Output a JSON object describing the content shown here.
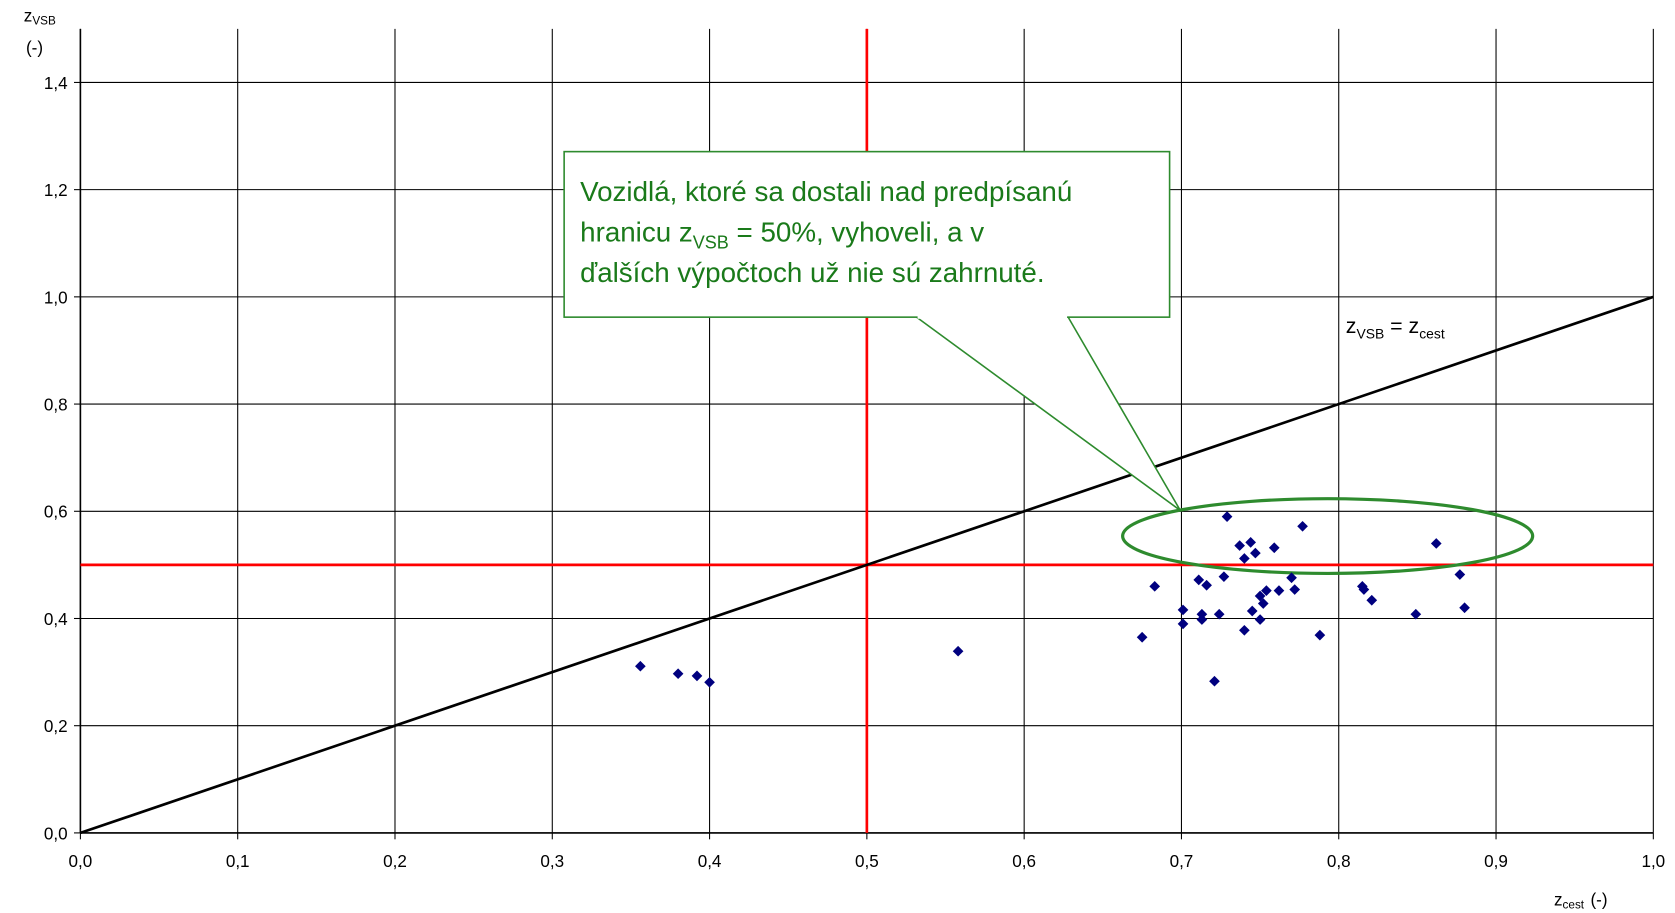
{
  "chart_data": {
    "type": "scatter",
    "y_label": {
      "main": "z",
      "sub": "VSB",
      "unit": "(-)"
    },
    "x_label": {
      "main": "z",
      "sub": "cest",
      "unit": "(-)"
    },
    "xlim": [
      0,
      1.0
    ],
    "ylim": [
      0,
      1.5
    ],
    "xticks": [
      {
        "value": 0,
        "label": "0,0"
      },
      {
        "value": 0.1,
        "label": "0,1"
      },
      {
        "value": 0.2,
        "label": "0,2"
      },
      {
        "value": 0.3,
        "label": "0,3"
      },
      {
        "value": 0.4,
        "label": "0,4"
      },
      {
        "value": 0.5,
        "label": "0,5"
      },
      {
        "value": 0.6,
        "label": "0,6"
      },
      {
        "value": 0.7,
        "label": "0,7"
      },
      {
        "value": 0.8,
        "label": "0,8"
      },
      {
        "value": 0.9,
        "label": "0,9"
      },
      {
        "value": 1.0,
        "label": "1,0"
      }
    ],
    "yticks": [
      {
        "value": 0,
        "label": "0,0"
      },
      {
        "value": 0.2,
        "label": "0,2"
      },
      {
        "value": 0.4,
        "label": "0,4"
      },
      {
        "value": 0.6,
        "label": "0,6"
      },
      {
        "value": 0.8,
        "label": "0,8"
      },
      {
        "value": 1.0,
        "label": "1,0"
      },
      {
        "value": 1.2,
        "label": "1,2"
      },
      {
        "value": 1.4,
        "label": "1,4"
      }
    ],
    "grid": true,
    "series": [
      {
        "color": "#00007f",
        "x": [
          0.356,
          0.38,
          0.392,
          0.4,
          0.558,
          0.675,
          0.683,
          0.701,
          0.701,
          0.711,
          0.713,
          0.713,
          0.716,
          0.724,
          0.721,
          0.727,
          0.729,
          0.737,
          0.74,
          0.74,
          0.744,
          0.747,
          0.745,
          0.75,
          0.75,
          0.752,
          0.754,
          0.759,
          0.762,
          0.77,
          0.772,
          0.777,
          0.788,
          0.815,
          0.816,
          0.821,
          0.849,
          0.862,
          0.877,
          0.88
        ],
        "values": [
          0.311,
          0.297,
          0.293,
          0.281,
          0.339,
          0.365,
          0.46,
          0.416,
          0.39,
          0.472,
          0.408,
          0.398,
          0.462,
          0.408,
          0.283,
          0.478,
          0.59,
          0.536,
          0.512,
          0.378,
          0.542,
          0.522,
          0.414,
          0.442,
          0.398,
          0.428,
          0.452,
          0.532,
          0.452,
          0.476,
          0.454,
          0.572,
          0.369,
          0.46,
          0.454,
          0.434,
          0.408,
          0.54,
          0.482,
          0.42
        ]
      }
    ],
    "reference_lines": {
      "x": 0.5,
      "y": 0.5,
      "color": "#ff0000"
    },
    "diagonal": {
      "x": [
        0,
        1.0
      ],
      "y": [
        0,
        1.0
      ],
      "color": "#000000",
      "label": [
        "z",
        "VSB",
        " = z",
        "cest"
      ]
    },
    "annotation": {
      "lines": [
        "Vozidlá, ktoré sa dostali nad predpísanú",
        [
          "hranicu z",
          "VSB",
          " = 50%, vyhoveli, a v"
        ],
        "ďalších výpočtoch už nie sú zahrnuté."
      ]
    }
  }
}
